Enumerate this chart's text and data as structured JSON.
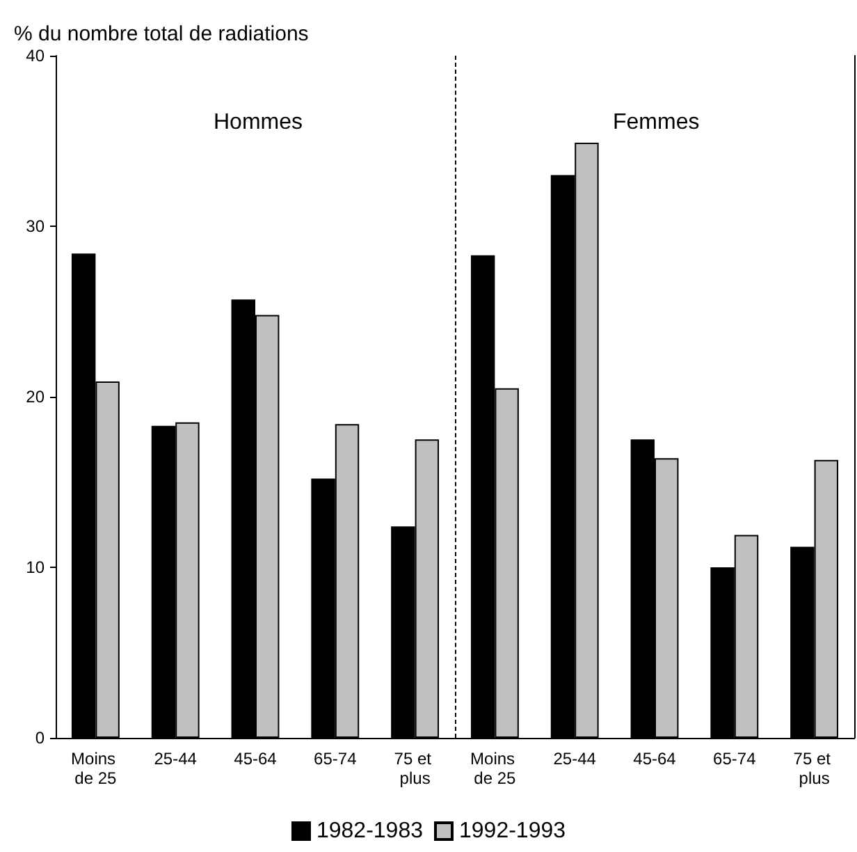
{
  "chart_data": {
    "type": "bar",
    "ylabel": "% du nombre total de radiations",
    "categories": [
      "Moins de 25",
      "25-44",
      "45-64",
      "65-74",
      "75 et plus",
      "Moins de 25",
      "25-44",
      "45-64",
      "65-74",
      "75 et plus"
    ],
    "series": [
      {
        "name": "1982-1983",
        "color": "#000000",
        "values": [
          28.4,
          18.3,
          25.7,
          15.2,
          12.4,
          28.3,
          33.0,
          17.5,
          10.0,
          11.2
        ]
      },
      {
        "name": "1992-1993",
        "color": "#c0c0c0",
        "values": [
          20.9,
          18.5,
          24.8,
          18.4,
          17.5,
          20.5,
          34.9,
          16.4,
          11.9,
          16.3
        ]
      }
    ],
    "ylim": [
      0,
      40
    ],
    "yticks": [
      0,
      10,
      20,
      30,
      40
    ],
    "annotations": [
      "Hommes",
      "Femmes"
    ],
    "grid": false,
    "legend": "bottom"
  }
}
